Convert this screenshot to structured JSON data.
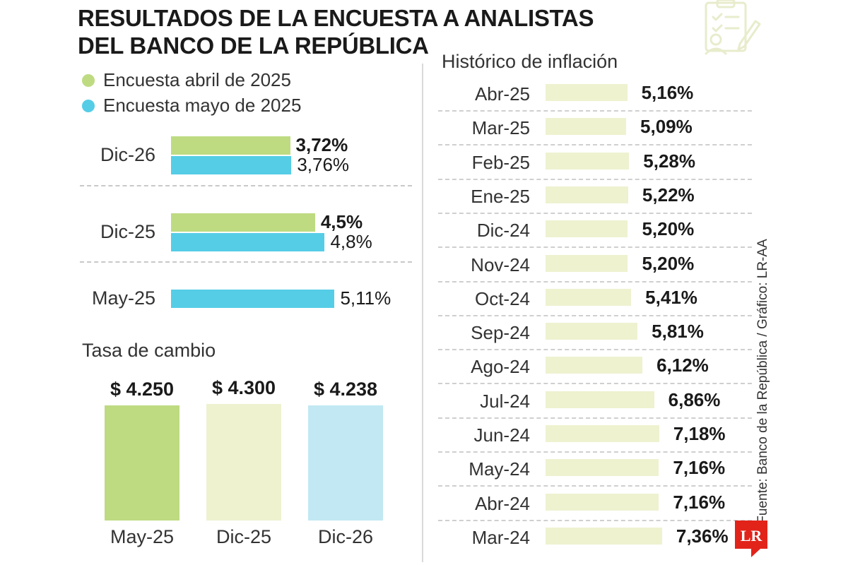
{
  "title_line1": "RESULTADOS DE LA ENCUESTA A ANALISTAS",
  "title_line2": "DEL BANCO DE LA REPÚBLICA",
  "colors": {
    "april": "#bedb82",
    "may": "#55cde6",
    "fx_may": "#bedb82",
    "fx_dic25": "#eef2cf",
    "fx_dic26": "#c1e8f3",
    "history": "#eef2cf",
    "logo": "#e2231a"
  },
  "source": "Fuente: Banco de la República / Gráfico: LR-AA",
  "logo_text": "LR",
  "decor_icon": "survey-checklist-icon",
  "chart_data": [
    {
      "type": "bar",
      "orientation": "horizontal",
      "categories": [
        "Dic-26",
        "Dic-25",
        "May-25"
      ],
      "series": [
        {
          "name": "Encuesta abril de 2025",
          "values": [
            3.72,
            4.5,
            null
          ],
          "labels": [
            "3,72%",
            "4,5%",
            ""
          ]
        },
        {
          "name": "Encuesta mayo de 2025",
          "values": [
            3.76,
            4.8,
            5.11
          ],
          "labels": [
            "3,76%",
            "4,8%",
            "5,11%"
          ]
        }
      ],
      "legend": "top-left"
    },
    {
      "type": "bar",
      "title": "Tasa de cambio",
      "categories": [
        "May-25",
        "Dic-25",
        "Dic-26"
      ],
      "values": [
        4250,
        4300,
        4238
      ],
      "labels": [
        "$ 4.250",
        "$ 4.300",
        "$ 4.238"
      ]
    },
    {
      "type": "bar",
      "orientation": "horizontal",
      "title": "Histórico de inflación",
      "categories": [
        "Abr-25",
        "Mar-25",
        "Feb-25",
        "Ene-25",
        "Dic-24",
        "Nov-24",
        "Oct-24",
        "Sep-24",
        "Ago-24",
        "Jul-24",
        "Jun-24",
        "May-24",
        "Abr-24",
        "Mar-24"
      ],
      "values": [
        5.16,
        5.09,
        5.28,
        5.22,
        5.2,
        5.2,
        5.41,
        5.81,
        6.12,
        6.86,
        7.18,
        7.16,
        7.16,
        7.36
      ],
      "labels": [
        "5,16%",
        "5,09%",
        "5,28%",
        "5,22%",
        "5,20%",
        "5,20%",
        "5,41%",
        "5,81%",
        "6,12%",
        "6,86%",
        "7,18%",
        "7,16%",
        "7,16%",
        "7,36%"
      ]
    }
  ]
}
